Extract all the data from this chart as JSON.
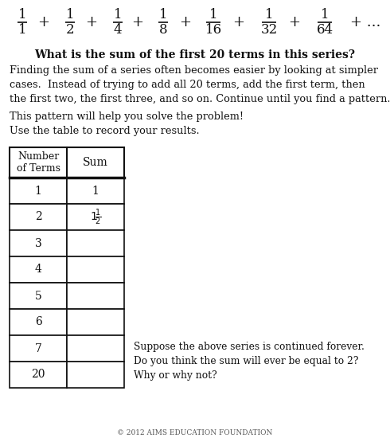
{
  "bg_color": "#ffffff",
  "question": "What is the sum of the first 20 terms in this series?",
  "paragraph1": "Finding the sum of a series often becomes easier by looking at simpler\ncases.  Instead of trying to add all 20 terms, add the first term, then\nthe first two, the first three, and so on. Continue until you find a pattern.",
  "paragraph2": "This pattern will help you solve the problem!\nUse the table to record your results.",
  "table_numbers": [
    "1",
    "2",
    "3",
    "4",
    "5",
    "6",
    "7",
    "20"
  ],
  "table_sums": [
    "1",
    "",
    "",
    "",
    "",
    "",
    "",
    ""
  ],
  "side_text": "Suppose the above series is continued forever.\nDo you think the sum will ever be equal to 2?\nWhy or why not?",
  "footer": "© 2012 AIMS EDUCATION FOUNDATION",
  "series_fracs": [
    "1",
    "2",
    "4",
    "8",
    "16",
    "32",
    "64"
  ],
  "table_header_left": "Number\nof Terms",
  "table_header_right": "Sum"
}
